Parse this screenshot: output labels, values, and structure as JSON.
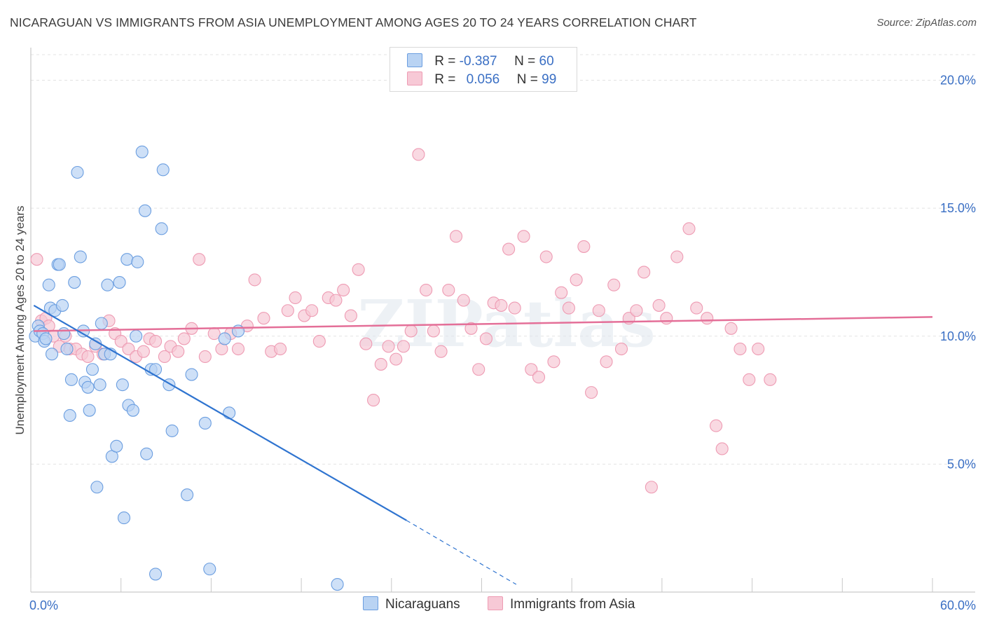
{
  "title": "NICARAGUAN VS IMMIGRANTS FROM ASIA UNEMPLOYMENT AMONG AGES 20 TO 24 YEARS CORRELATION CHART",
  "source": "Source: ZipAtlas.com",
  "watermark": "ZIPatlas",
  "legend_top": {
    "rows": [
      {
        "r_label": "R =",
        "r_value": "-0.387",
        "n_label": "N =",
        "n_value": "60"
      },
      {
        "r_label": "R =",
        "r_value": "0.056",
        "n_label": "N =",
        "n_value": "99"
      }
    ]
  },
  "chart_data": {
    "type": "scatter",
    "title": "NICARAGUAN VS IMMIGRANTS FROM ASIA UNEMPLOYMENT AMONG AGES 20 TO 24 YEARS CORRELATION CHART",
    "xlabel": "",
    "ylabel": "Unemployment Among Ages 20 to 24 years",
    "xlim": [
      0,
      60
    ],
    "ylim": [
      0,
      21
    ],
    "x_tick_labels": [
      "0.0%",
      "60.0%"
    ],
    "y_tick_labels": [
      "5.0%",
      "10.0%",
      "15.0%",
      "20.0%"
    ],
    "y_ticks": [
      5,
      10,
      15,
      20
    ],
    "legend_position": "bottom-center",
    "colors": {
      "nicaraguans_fill": "#b9d3f3",
      "nicaraguans_stroke": "#6b9ee0",
      "nicaraguans_line": "#2f74d0",
      "asia_fill": "#f7c9d6",
      "asia_stroke": "#ee9bb3",
      "asia_line": "#e46f98",
      "grid": "#e3e3e3",
      "axis_text": "#3a6fc4"
    },
    "series": [
      {
        "name": "Nicaraguans",
        "r": -0.387,
        "n": 60,
        "trend": {
          "x0": 0.2,
          "y0": 11.2,
          "x1": 25.0,
          "y1": 2.8,
          "dash_x1": 32.3,
          "dash_y1": 0.3
        },
        "points": [
          [
            0.3,
            10.0
          ],
          [
            0.5,
            10.4
          ],
          [
            0.6,
            10.2
          ],
          [
            0.8,
            10.1
          ],
          [
            0.9,
            9.8
          ],
          [
            1.0,
            9.9
          ],
          [
            1.2,
            12.0
          ],
          [
            1.3,
            11.1
          ],
          [
            1.4,
            9.3
          ],
          [
            1.6,
            11.0
          ],
          [
            1.8,
            12.8
          ],
          [
            1.9,
            12.8
          ],
          [
            2.1,
            11.2
          ],
          [
            2.2,
            10.1
          ],
          [
            2.4,
            9.5
          ],
          [
            2.6,
            6.9
          ],
          [
            2.7,
            8.3
          ],
          [
            2.9,
            12.1
          ],
          [
            3.1,
            16.4
          ],
          [
            3.3,
            13.1
          ],
          [
            3.5,
            10.2
          ],
          [
            3.6,
            8.2
          ],
          [
            3.8,
            8.0
          ],
          [
            3.9,
            7.1
          ],
          [
            4.1,
            8.7
          ],
          [
            4.3,
            9.7
          ],
          [
            4.4,
            4.1
          ],
          [
            4.6,
            8.1
          ],
          [
            4.7,
            10.5
          ],
          [
            4.9,
            9.3
          ],
          [
            5.1,
            12.0
          ],
          [
            5.3,
            9.3
          ],
          [
            5.4,
            5.3
          ],
          [
            5.7,
            5.7
          ],
          [
            5.9,
            12.1
          ],
          [
            6.1,
            8.1
          ],
          [
            6.2,
            2.9
          ],
          [
            6.4,
            13.0
          ],
          [
            6.5,
            7.3
          ],
          [
            6.8,
            7.1
          ],
          [
            7.0,
            10.0
          ],
          [
            7.1,
            12.9
          ],
          [
            7.4,
            17.2
          ],
          [
            7.6,
            14.9
          ],
          [
            7.7,
            5.4
          ],
          [
            8.0,
            8.7
          ],
          [
            8.3,
            8.7
          ],
          [
            8.3,
            0.7
          ],
          [
            8.7,
            14.2
          ],
          [
            8.8,
            16.5
          ],
          [
            9.2,
            8.1
          ],
          [
            9.4,
            6.3
          ],
          [
            10.4,
            3.8
          ],
          [
            10.7,
            8.5
          ],
          [
            11.6,
            6.6
          ],
          [
            11.9,
            0.9
          ],
          [
            12.9,
            9.9
          ],
          [
            13.2,
            7.0
          ],
          [
            13.8,
            10.2
          ],
          [
            20.4,
            0.3
          ]
        ]
      },
      {
        "name": "Immigrants from Asia",
        "r": 0.056,
        "n": 99,
        "trend": {
          "x0": 0.2,
          "y0": 10.2,
          "x1": 60.0,
          "y1": 10.75
        },
        "points": [
          [
            0.4,
            13.0
          ],
          [
            0.7,
            10.6
          ],
          [
            1.0,
            10.7
          ],
          [
            1.2,
            10.4
          ],
          [
            1.5,
            10.0
          ],
          [
            1.9,
            9.6
          ],
          [
            2.3,
            10.0
          ],
          [
            2.6,
            9.5
          ],
          [
            3.0,
            9.5
          ],
          [
            3.4,
            9.3
          ],
          [
            3.8,
            9.2
          ],
          [
            4.3,
            9.6
          ],
          [
            4.8,
            9.3
          ],
          [
            5.2,
            10.6
          ],
          [
            5.6,
            10.1
          ],
          [
            6.0,
            9.8
          ],
          [
            6.5,
            9.5
          ],
          [
            7.0,
            9.2
          ],
          [
            7.5,
            9.4
          ],
          [
            7.9,
            9.9
          ],
          [
            8.3,
            9.8
          ],
          [
            8.9,
            9.2
          ],
          [
            9.3,
            9.6
          ],
          [
            9.8,
            9.4
          ],
          [
            10.2,
            9.9
          ],
          [
            10.7,
            10.3
          ],
          [
            11.2,
            13.0
          ],
          [
            11.6,
            9.2
          ],
          [
            12.2,
            10.1
          ],
          [
            12.7,
            9.5
          ],
          [
            13.3,
            10.1
          ],
          [
            13.8,
            9.5
          ],
          [
            14.4,
            10.4
          ],
          [
            14.9,
            12.2
          ],
          [
            15.5,
            10.7
          ],
          [
            16.0,
            9.4
          ],
          [
            16.6,
            9.5
          ],
          [
            17.1,
            11.0
          ],
          [
            17.6,
            11.5
          ],
          [
            18.2,
            10.8
          ],
          [
            18.7,
            11.0
          ],
          [
            19.2,
            9.8
          ],
          [
            19.8,
            11.5
          ],
          [
            20.3,
            11.4
          ],
          [
            20.8,
            11.8
          ],
          [
            21.3,
            10.8
          ],
          [
            21.8,
            12.6
          ],
          [
            22.3,
            9.7
          ],
          [
            22.8,
            7.5
          ],
          [
            23.3,
            8.9
          ],
          [
            23.8,
            9.6
          ],
          [
            24.3,
            9.1
          ],
          [
            24.8,
            9.6
          ],
          [
            25.3,
            10.2
          ],
          [
            25.8,
            17.1
          ],
          [
            26.3,
            11.8
          ],
          [
            26.8,
            10.2
          ],
          [
            27.3,
            9.4
          ],
          [
            27.8,
            11.8
          ],
          [
            28.3,
            13.9
          ],
          [
            28.8,
            11.4
          ],
          [
            29.3,
            10.3
          ],
          [
            29.8,
            8.7
          ],
          [
            30.3,
            9.9
          ],
          [
            30.8,
            11.3
          ],
          [
            31.3,
            11.2
          ],
          [
            31.8,
            13.4
          ],
          [
            32.2,
            11.1
          ],
          [
            32.8,
            13.9
          ],
          [
            33.3,
            8.7
          ],
          [
            33.8,
            8.4
          ],
          [
            34.3,
            13.1
          ],
          [
            34.8,
            9.0
          ],
          [
            35.3,
            11.7
          ],
          [
            35.8,
            11.1
          ],
          [
            36.3,
            12.2
          ],
          [
            36.8,
            13.5
          ],
          [
            37.3,
            7.8
          ],
          [
            37.8,
            11.0
          ],
          [
            38.3,
            9.0
          ],
          [
            38.8,
            12.0
          ],
          [
            39.3,
            9.5
          ],
          [
            39.8,
            10.7
          ],
          [
            40.3,
            11.0
          ],
          [
            40.8,
            12.5
          ],
          [
            41.3,
            4.1
          ],
          [
            41.8,
            11.2
          ],
          [
            42.3,
            10.7
          ],
          [
            43.0,
            13.1
          ],
          [
            43.8,
            14.2
          ],
          [
            44.3,
            11.1
          ],
          [
            45.0,
            10.7
          ],
          [
            45.6,
            6.5
          ],
          [
            46.0,
            5.6
          ],
          [
            46.6,
            10.3
          ],
          [
            47.2,
            9.5
          ],
          [
            47.8,
            8.3
          ],
          [
            48.4,
            9.5
          ],
          [
            49.2,
            8.3
          ]
        ]
      }
    ]
  },
  "bottom_legend": {
    "items": [
      "Nicaraguans",
      "Immigrants from Asia"
    ]
  }
}
